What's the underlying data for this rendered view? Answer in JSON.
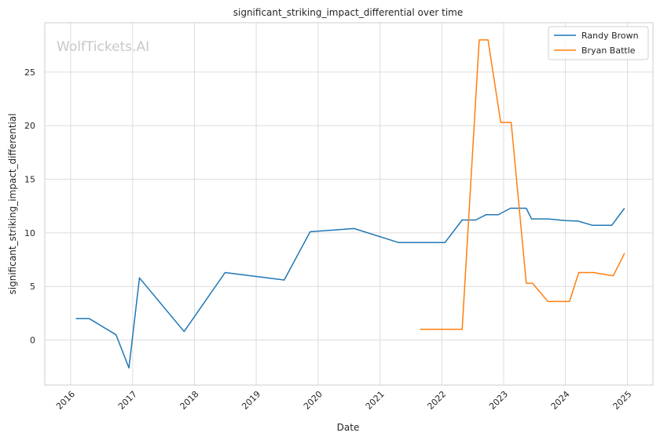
{
  "chart_data": {
    "type": "line",
    "title": "significant_striking_impact_differential over time",
    "xlabel": "Date",
    "ylabel": "significant_striking_impact_differential",
    "watermark": "WolfTickets.AI",
    "xlim": [
      "2015-08-01",
      "2025-06-01"
    ],
    "ylim": [
      -4.2,
      29.6
    ],
    "x_ticks": [
      "2016",
      "2017",
      "2018",
      "2019",
      "2020",
      "2021",
      "2022",
      "2023",
      "2024",
      "2025"
    ],
    "y_ticks": [
      0,
      5,
      10,
      15,
      20,
      25
    ],
    "grid": true,
    "legend_position": "top-right",
    "series": [
      {
        "name": "Randy Brown",
        "color": "#1f77b4",
        "points": [
          [
            "2016-02-01",
            2.0
          ],
          [
            "2016-04-20",
            2.0
          ],
          [
            "2016-09-25",
            0.5
          ],
          [
            "2016-12-10",
            -2.6
          ],
          [
            "2017-02-10",
            5.8
          ],
          [
            "2017-11-01",
            0.8
          ],
          [
            "2018-07-01",
            6.3
          ],
          [
            "2019-06-15",
            5.6
          ],
          [
            "2019-11-15",
            10.1
          ],
          [
            "2020-08-01",
            10.4
          ],
          [
            "2021-04-20",
            9.1
          ],
          [
            "2022-01-20",
            9.1
          ],
          [
            "2022-05-01",
            11.2
          ],
          [
            "2022-07-20",
            11.2
          ],
          [
            "2022-09-20",
            11.7
          ],
          [
            "2022-12-01",
            11.7
          ],
          [
            "2023-02-10",
            12.3
          ],
          [
            "2023-05-15",
            12.3
          ],
          [
            "2023-06-15",
            11.3
          ],
          [
            "2023-09-20",
            11.3
          ],
          [
            "2024-01-01",
            11.15
          ],
          [
            "2024-03-15",
            11.1
          ],
          [
            "2024-06-10",
            10.7
          ],
          [
            "2024-10-01",
            10.7
          ],
          [
            "2024-12-15",
            12.3
          ]
        ]
      },
      {
        "name": "Bryan Battle",
        "color": "#ff7f0e",
        "points": [
          [
            "2021-08-25",
            1.0
          ],
          [
            "2022-05-01",
            1.0
          ],
          [
            "2022-08-10",
            28.0
          ],
          [
            "2022-10-01",
            28.0
          ],
          [
            "2022-12-15",
            20.3
          ],
          [
            "2023-02-15",
            20.3
          ],
          [
            "2023-05-15",
            5.3
          ],
          [
            "2023-06-20",
            5.3
          ],
          [
            "2023-09-20",
            3.6
          ],
          [
            "2024-01-25",
            3.6
          ],
          [
            "2024-03-20",
            6.3
          ],
          [
            "2024-06-15",
            6.3
          ],
          [
            "2024-10-10",
            6.0
          ],
          [
            "2024-12-15",
            8.1
          ]
        ]
      }
    ]
  }
}
